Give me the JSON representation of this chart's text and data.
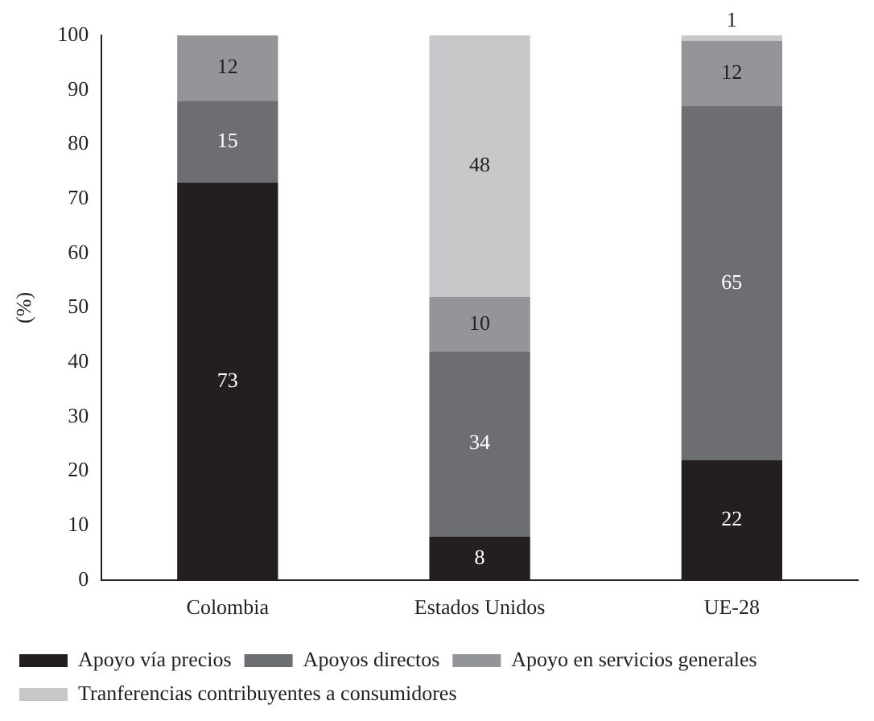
{
  "chart_data": {
    "type": "bar",
    "stacked": true,
    "ylabel": "(%)",
    "categories": [
      "Colombia",
      "Estados Unidos",
      "UE-28"
    ],
    "series": [
      {
        "name": "Apoyo vía precios",
        "color": "#231f20",
        "values": [
          73,
          8,
          22
        ]
      },
      {
        "name": "Apoyos directos",
        "color": "#6d6e71",
        "values": [
          15,
          34,
          65
        ]
      },
      {
        "name": "Apoyo en servicios generales",
        "color": "#939598",
        "values": [
          12,
          10,
          12
        ]
      },
      {
        "name": "Tranferencias contribuyentes a consumidores",
        "color": "#c7c8ca",
        "values": [
          null,
          48,
          1
        ]
      }
    ],
    "ylim": [
      0,
      100
    ],
    "yticks": [
      0,
      10,
      20,
      30,
      40,
      50,
      60,
      70,
      80,
      90,
      100
    ],
    "grid": false,
    "legend": "bottom",
    "data_labels": true
  }
}
